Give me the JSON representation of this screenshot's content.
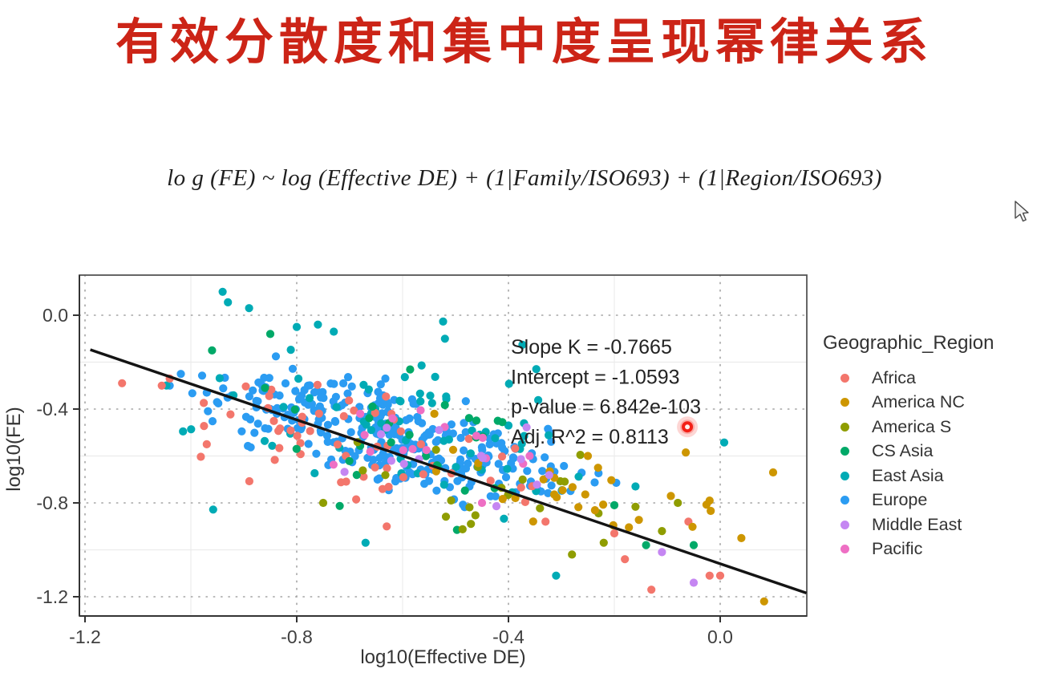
{
  "title": {
    "text": "有效分散度和集中度呈现幂律关系",
    "color": "#cc2417"
  },
  "formula": {
    "text": "lo g (FE) ~ log (Effective DE) + (1|Family/ISO693) + (1|Region/ISO693)"
  },
  "chart_data": {
    "type": "scatter",
    "xlabel": "log10(Effective DE)",
    "ylabel": "log10(FE)",
    "xlim": [
      -1.21,
      0.16
    ],
    "ylim": [
      -1.28,
      0.17
    ],
    "xticks": [
      -1.2,
      -0.8,
      -0.4,
      0.0
    ],
    "yticks": [
      0.0,
      -0.4,
      -0.8,
      -1.2
    ],
    "grid": "dotted-major-with-faint-minor",
    "regression": {
      "slope": -0.7665,
      "intercept": -1.0593,
      "x_start": -1.19,
      "x_end": 0.163,
      "color": "#141414"
    },
    "stats": {
      "slope_k": -0.7665,
      "intercept": -1.0593,
      "p_value": "6.842e-103",
      "adj_r2": 0.8113
    },
    "stats_annotation": {
      "lines": [
        "Slope K = -0.7665",
        "Intercept = -1.0593",
        "p-value = 6.842e-103",
        "Adj. R^2 = 0.8113"
      ],
      "color": "#232323"
    },
    "laser_pointer": {
      "x": -0.062,
      "y": -0.476,
      "color": "#f32017"
    },
    "legend": {
      "title": "Geographic_Region",
      "position": "right",
      "items": [
        {
          "label": "Africa",
          "color": "#f3766c"
        },
        {
          "label": "America NC",
          "color": "#cd9600"
        },
        {
          "label": "America S",
          "color": "#8f9d00"
        },
        {
          "label": "CS Asia",
          "color": "#00a968"
        },
        {
          "label": "East Asia",
          "color": "#00abb5"
        },
        {
          "label": "Europe",
          "color": "#2b9cf2"
        },
        {
          "label": "Middle East",
          "color": "#c586f2"
        },
        {
          "label": "Pacific",
          "color": "#ee6fc4"
        }
      ]
    },
    "series": [
      {
        "name": "Africa",
        "color": "#f3766c",
        "z": 3,
        "seed": 101,
        "clusters": [
          {
            "cx": -0.8,
            "cy": -0.46,
            "sx": 0.14,
            "sy": 0.11,
            "n": 34
          },
          {
            "cx": -0.52,
            "cy": -0.66,
            "sx": 0.13,
            "sy": 0.09,
            "n": 22
          }
        ],
        "points": [
          [
            -1.13,
            -0.29
          ],
          [
            -1.04,
            -0.27
          ],
          [
            -0.97,
            -0.55
          ],
          [
            -0.63,
            -0.9
          ],
          [
            -0.33,
            -0.88
          ],
          [
            -0.2,
            -0.93
          ],
          [
            -0.13,
            -1.17
          ],
          [
            -0.06,
            -0.88
          ],
          [
            -0.02,
            -1.11
          ],
          [
            0.0,
            -1.11
          ],
          [
            -0.18,
            -1.04
          ]
        ]
      },
      {
        "name": "America NC",
        "color": "#cd9600",
        "z": 6,
        "seed": 202,
        "clusters": [
          {
            "cx": -0.36,
            "cy": -0.72,
            "sx": 0.1,
            "sy": 0.08,
            "n": 16
          },
          {
            "cx": -0.16,
            "cy": -0.82,
            "sx": 0.09,
            "sy": 0.09,
            "n": 10
          }
        ],
        "points": [
          [
            -0.065,
            -0.585
          ],
          [
            0.083,
            -1.22
          ],
          [
            0.04,
            -0.95
          ],
          [
            -0.02,
            -0.79
          ],
          [
            -0.54,
            -0.42
          ],
          [
            0.1,
            -0.67
          ],
          [
            -0.25,
            -0.6
          ]
        ]
      },
      {
        "name": "America S",
        "color": "#8f9d00",
        "z": 5,
        "seed": 303,
        "clusters": [
          {
            "cx": -0.44,
            "cy": -0.74,
            "sx": 0.13,
            "sy": 0.09,
            "n": 20
          }
        ],
        "points": [
          [
            -0.28,
            -1.02
          ],
          [
            -0.22,
            -0.97
          ],
          [
            -0.75,
            -0.8
          ],
          [
            -0.08,
            -0.8
          ],
          [
            -0.11,
            -0.92
          ]
        ]
      },
      {
        "name": "CS Asia",
        "color": "#00a968",
        "z": 4,
        "seed": 404,
        "clusters": [
          {
            "cx": -0.56,
            "cy": -0.56,
            "sx": 0.15,
            "sy": 0.13,
            "n": 24
          }
        ],
        "points": [
          [
            -0.96,
            -0.15
          ],
          [
            -0.85,
            -0.08
          ],
          [
            -0.86,
            -0.31
          ],
          [
            -0.14,
            -0.98
          ],
          [
            -0.2,
            -0.81
          ],
          [
            -0.05,
            -0.98
          ]
        ]
      },
      {
        "name": "East Asia",
        "color": "#00abb5",
        "z": 2,
        "seed": 505,
        "clusters": [
          {
            "cx": -0.63,
            "cy": -0.4,
            "sx": 0.17,
            "sy": 0.14,
            "n": 48
          },
          {
            "cx": -0.41,
            "cy": -0.6,
            "sx": 0.11,
            "sy": 0.09,
            "n": 22
          }
        ],
        "points": [
          [
            -0.94,
            0.1
          ],
          [
            -0.93,
            0.055
          ],
          [
            -0.89,
            0.03
          ],
          [
            -0.8,
            -0.05
          ],
          [
            -0.76,
            -0.04
          ],
          [
            -0.73,
            -0.07
          ],
          [
            -0.67,
            -0.97
          ],
          [
            -0.31,
            -1.11
          ],
          [
            -0.52,
            -0.1
          ],
          [
            -0.4,
            -0.47
          ],
          [
            -0.16,
            -0.73
          ]
        ]
      },
      {
        "name": "Europe",
        "color": "#2b9cf2",
        "z": 1,
        "seed": 606,
        "clusters": [
          {
            "cx": -0.74,
            "cy": -0.41,
            "sx": 0.1,
            "sy": 0.085,
            "n": 110
          },
          {
            "cx": -0.59,
            "cy": -0.55,
            "sx": 0.09,
            "sy": 0.075,
            "n": 105
          },
          {
            "cx": -0.45,
            "cy": -0.65,
            "sx": 0.08,
            "sy": 0.065,
            "n": 68
          },
          {
            "cx": -0.86,
            "cy": -0.33,
            "sx": 0.07,
            "sy": 0.07,
            "n": 26
          },
          {
            "cx": -0.29,
            "cy": -0.72,
            "sx": 0.055,
            "sy": 0.05,
            "n": 14
          }
        ],
        "points": [
          [
            -1.04,
            -0.3
          ],
          [
            -0.97,
            -0.33
          ]
        ]
      },
      {
        "name": "Middle East",
        "color": "#c586f2",
        "z": 8,
        "seed": 707,
        "clusters": [
          {
            "cx": -0.49,
            "cy": -0.62,
            "sx": 0.1,
            "sy": 0.075,
            "n": 13
          }
        ],
        "points": [
          [
            -0.05,
            -1.14
          ],
          [
            -0.11,
            -1.01
          ],
          [
            -0.63,
            -0.48
          ]
        ]
      },
      {
        "name": "Pacific",
        "color": "#ee6fc4",
        "z": 7,
        "seed": 808,
        "clusters": [
          {
            "cx": -0.57,
            "cy": -0.53,
            "sx": 0.1,
            "sy": 0.085,
            "n": 13
          }
        ],
        "points": [
          [
            -0.45,
            -0.8
          ],
          [
            -0.68,
            -0.42
          ],
          [
            -0.36,
            -0.6
          ]
        ]
      }
    ]
  }
}
